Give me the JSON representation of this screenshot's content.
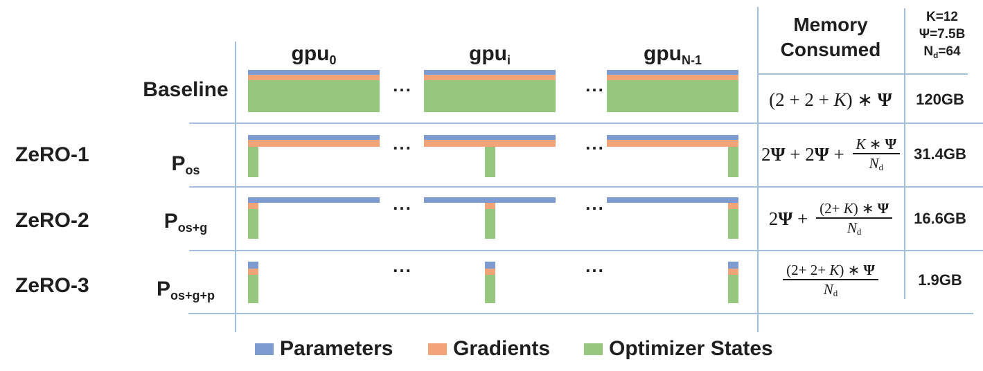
{
  "gpu_columns": {
    "ellipsis": "...",
    "labels": [
      {
        "base": "gpu",
        "sub": "0"
      },
      {
        "base": "gpu",
        "sub": "i"
      },
      {
        "base": "gpu",
        "sub": "N-1"
      }
    ]
  },
  "memory_header": {
    "line1": "Memory",
    "line2": "Consumed"
  },
  "constants": {
    "k": [
      {
        "t": "K=12"
      }
    ],
    "psi": [
      {
        "t": "Ψ",
        "c": "psi"
      },
      {
        "t": "=7.5B"
      }
    ],
    "nd": [
      {
        "t": "N"
      },
      {
        "t": "d",
        "c": "sub"
      },
      {
        "t": "=64"
      }
    ]
  },
  "rows": [
    {
      "zero_label": "",
      "row_label": {
        "base": "Baseline",
        "sub": ""
      },
      "formula_inline": [
        {
          "t": "(2 + 2 + "
        },
        {
          "t": "K",
          "c": "var"
        },
        {
          "t": ") ∗ "
        },
        {
          "t": "Ψ",
          "c": "psi"
        }
      ],
      "memory": "120GB"
    },
    {
      "zero_label": "ZeRO-1",
      "row_label": {
        "base": "P",
        "sub": "os"
      },
      "formula_pre": [
        {
          "t": "2"
        },
        {
          "t": "Ψ",
          "c": "psi"
        },
        {
          "t": " + 2"
        },
        {
          "t": "Ψ",
          "c": "psi"
        },
        {
          "t": " + "
        }
      ],
      "formula_num": [
        {
          "t": "K",
          "c": "var"
        },
        {
          "t": " ∗ "
        },
        {
          "t": "Ψ",
          "c": "psi"
        }
      ],
      "formula_den": [
        {
          "t": "N",
          "c": "var"
        },
        {
          "t": "d",
          "c": "sub"
        }
      ],
      "memory": "31.4GB"
    },
    {
      "zero_label": "ZeRO-2",
      "row_label": {
        "base": "P",
        "sub": "os+g"
      },
      "formula_pre": [
        {
          "t": "2"
        },
        {
          "t": "Ψ",
          "c": "psi"
        },
        {
          "t": " + "
        }
      ],
      "formula_num": [
        {
          "t": "(2+ "
        },
        {
          "t": "K",
          "c": "var"
        },
        {
          "t": ") ∗ "
        },
        {
          "t": "Ψ",
          "c": "psi"
        }
      ],
      "formula_den": [
        {
          "t": "N",
          "c": "var"
        },
        {
          "t": "d",
          "c": "sub"
        }
      ],
      "memory": "16.6GB"
    },
    {
      "zero_label": "ZeRO-3",
      "row_label": {
        "base": "P",
        "sub": "os+g+p"
      },
      "formula_num": [
        {
          "t": "(2+ 2+ "
        },
        {
          "t": "K",
          "c": "var"
        },
        {
          "t": ") ∗ "
        },
        {
          "t": "Ψ",
          "c": "psi"
        }
      ],
      "formula_den": [
        {
          "t": "N",
          "c": "var"
        },
        {
          "t": "d",
          "c": "sub"
        }
      ],
      "memory": "1.9GB"
    }
  ],
  "legend": [
    {
      "label": "Parameters",
      "color": "#7d9ad1"
    },
    {
      "label": "Gradients",
      "color": "#f2a377"
    },
    {
      "label": "Optimizer States",
      "color": "#97c67e"
    }
  ],
  "colors": {
    "parameters": "#7d9ad1",
    "gradients": "#f2a377",
    "optimizer": "#97c67e",
    "grid": "#a3bfe0",
    "text": "#1f1f1f"
  }
}
